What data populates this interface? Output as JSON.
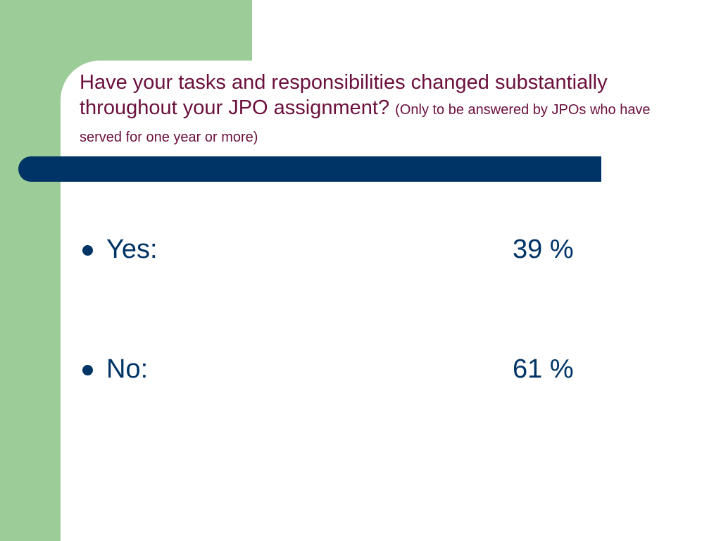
{
  "slide": {
    "title": "Have your tasks and responsibilities changed substantially throughout your JPO assignment?",
    "title_note": "(Only to be answered by JPOs who have served for one year or more)",
    "items": [
      {
        "label": "Yes:",
        "value": "39 %"
      },
      {
        "label": "No:",
        "value": "61 %"
      }
    ]
  },
  "colors": {
    "green_band": "#9ccc98",
    "navy": "#003466",
    "title": "#6b0f3c"
  }
}
